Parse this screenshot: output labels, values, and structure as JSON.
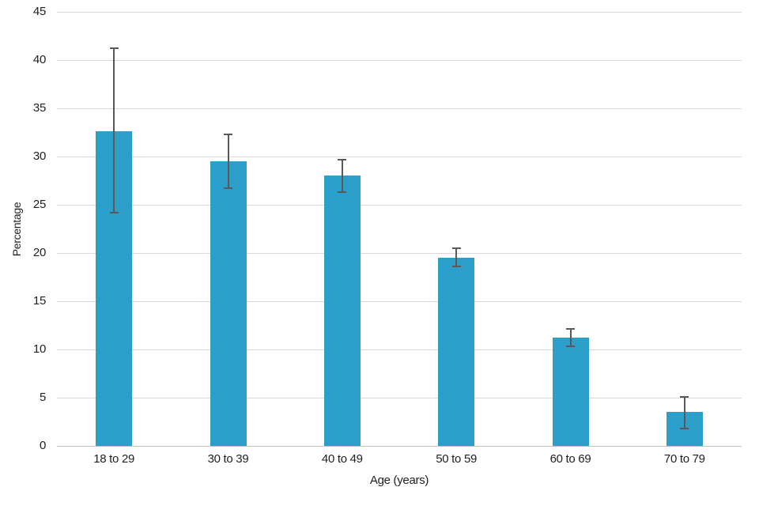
{
  "chart_data": {
    "type": "bar",
    "title": "",
    "xlabel": "Age (years)",
    "ylabel": "Percentage",
    "categories": [
      "18 to 29",
      "30 to 39",
      "40 to 49",
      "50 to 59",
      "60 to 69",
      "70 to 79"
    ],
    "series": [
      {
        "name": "Percentage",
        "values": [
          32.6,
          29.5,
          28.0,
          19.5,
          11.2,
          3.5
        ],
        "error_low": [
          24.2,
          26.7,
          26.3,
          18.6,
          10.3,
          1.8
        ],
        "error_high": [
          41.2,
          32.3,
          29.7,
          20.5,
          12.1,
          5.1
        ]
      }
    ],
    "ylim": [
      0,
      45
    ],
    "yticks": [
      0,
      5,
      10,
      15,
      20,
      25,
      30,
      35,
      40,
      45
    ],
    "grid": true,
    "legend": false,
    "colors": {
      "bar": "#2b9ec9",
      "error_bar": "#595959",
      "gridline": "#d9d9d9",
      "axis_line": "#bfbfbf",
      "text": "#1f1f1f",
      "background": "#ffffff"
    }
  }
}
